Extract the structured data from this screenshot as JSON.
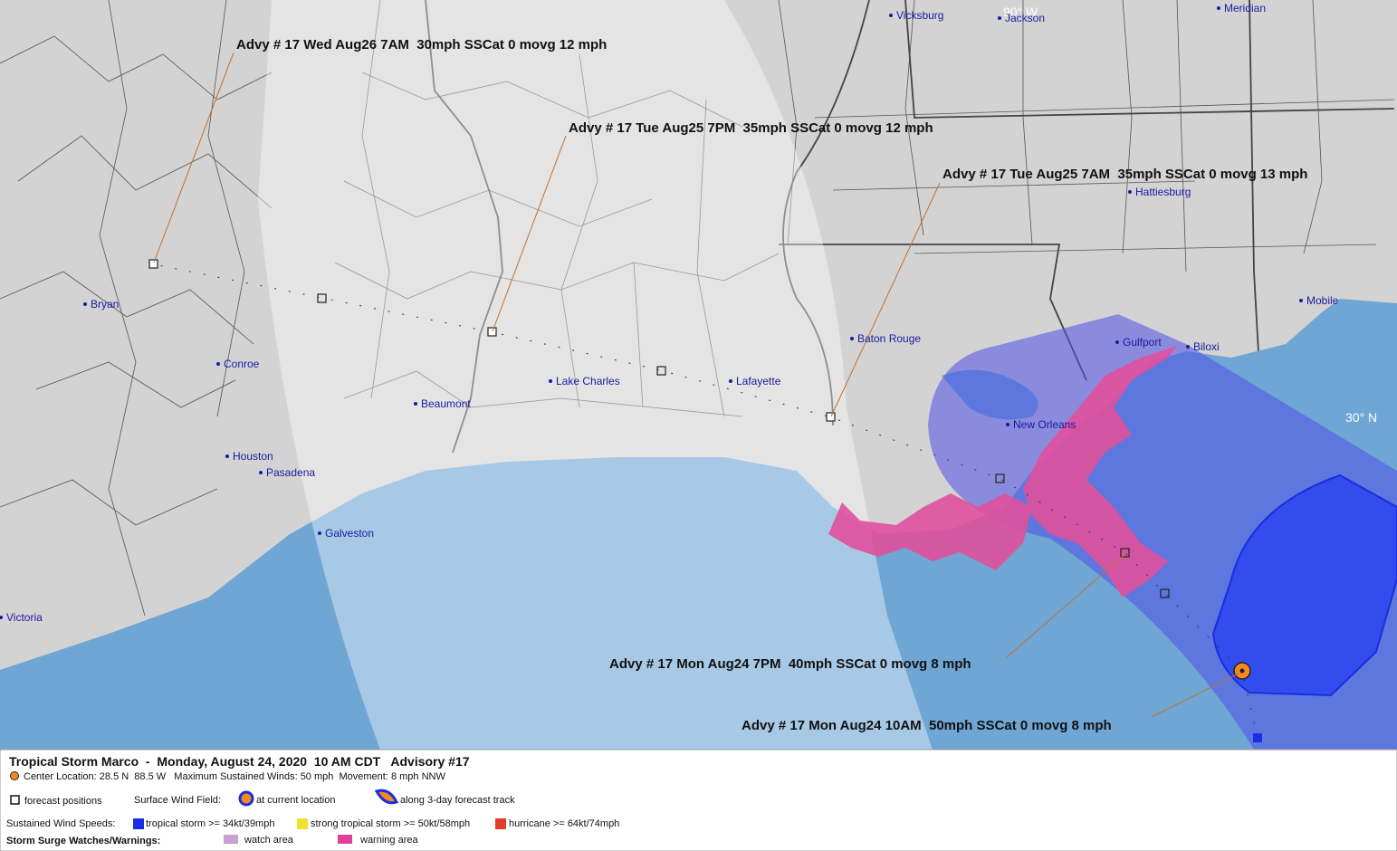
{
  "map": {
    "advisories": [
      "Advy # 17 Wed Aug26 7AM  30mph SSCat 0 movg 12 mph",
      "Advy # 17 Tue Aug25 7PM  35mph SSCat 0 movg 12 mph",
      "Advy # 17 Tue Aug25 7AM  35mph SSCat 0 movg 13 mph",
      "Advy # 17 Mon Aug24 7PM  40mph SSCat 0 movg 8 mph",
      "Advy # 17 Mon Aug24 10AM  50mph SSCat 0 movg 8 mph"
    ],
    "cities": [
      "Vicksburg",
      "Jackson",
      "Meridian",
      "Hattiesburg",
      "Mobile",
      "Gulfport",
      "Biloxi",
      "Baton Rouge",
      "New Orleans",
      "Lafayette",
      "Lake Charles",
      "Beaumont",
      "Houston",
      "Pasadena",
      "Galveston",
      "Conroe",
      "Bryan",
      "Victoria"
    ],
    "grid_labels": [
      "90° W",
      "30° N"
    ]
  },
  "legend": {
    "title": "Tropical Storm Marco  -  Monday, August 24, 2020  10 AM CDT   Advisory #17",
    "center_info": "Center Location: 28.5 N  88.5 W   Maximum Sustained Winds: 50 mph  Movement: 8 mph NNW",
    "forecast_positions": "forecast positions",
    "surface_wind_field": "Surface Wind Field:",
    "at_current_location": "at current location",
    "along_track": "along 3-day forecast track",
    "sustained_wind_speeds": "Sustained Wind Speeds:",
    "tropical_storm": "tropical storm >= 34kt/39mph",
    "strong_tropical_storm": "strong tropical storm >= 50kt/58mph",
    "hurricane": "hurricane >= 64kt/74mph",
    "storm_surge": "Storm Surge Watches/Warnings:",
    "watch_area": "watch area",
    "warning_area": "warning area"
  }
}
